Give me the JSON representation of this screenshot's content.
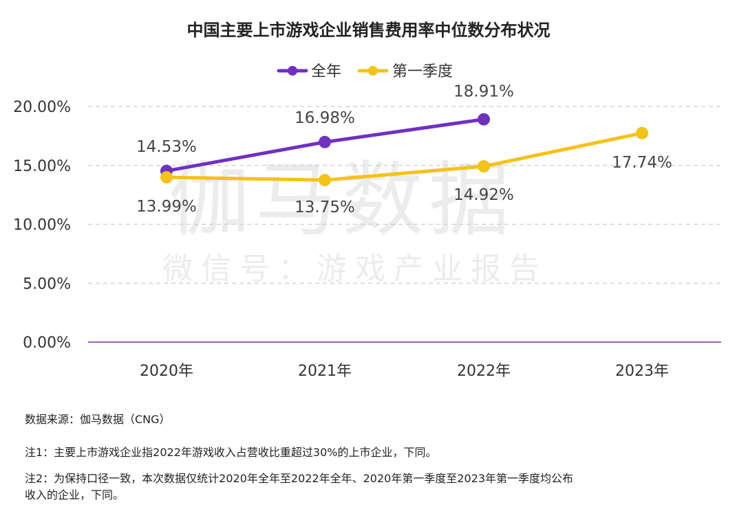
{
  "chart_data": {
    "type": "line",
    "title": "中国主要上市游戏企业销售费用率中位数分布状况",
    "categories": [
      "2020年",
      "2021年",
      "2022年",
      "2023年"
    ],
    "series": [
      {
        "name": "全年",
        "color": "#7030c0",
        "values": [
          14.53,
          16.98,
          18.91,
          null
        ],
        "labels": [
          "14.53%",
          "16.98%",
          "18.91%",
          ""
        ]
      },
      {
        "name": "第一季度",
        "color": "#f5c218",
        "values": [
          13.99,
          13.75,
          14.92,
          17.74
        ],
        "labels": [
          "13.99%",
          "13.75%",
          "14.92%",
          "17.74%"
        ]
      }
    ],
    "ylim": [
      0,
      20
    ],
    "yticks": [
      "0.00%",
      "5.00%",
      "10.00%",
      "15.00%",
      "20.00%"
    ],
    "ytick_values": [
      0,
      5,
      10,
      15,
      20
    ],
    "grid": true,
    "legend": "top-center"
  },
  "watermark": {
    "main": "伽马数据",
    "sub": "微信号：游戏产业报告"
  },
  "notes": {
    "source": "数据来源：伽马数据（CNG）",
    "note1": "注1：主要上市游戏企业指2022年游戏收入占营收比重超过30%的上市企业，下同。",
    "note2a": "注2：为保持口径一致，本次数据仅统计2020年全年至2022年全年、2020年第一季度至2023年第一季度均公布",
    "note2b": "收入的企业，下同。"
  }
}
